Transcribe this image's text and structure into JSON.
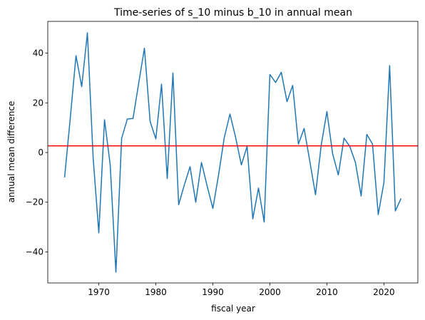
{
  "chart_data": {
    "type": "line",
    "title": "Time-series of s_10 minus b_10 in annual mean",
    "xlabel": "fiscal year",
    "ylabel": "annual mean difference",
    "xlim": [
      1961.05,
      2025.95
    ],
    "ylim": [
      -52.5,
      52.8
    ],
    "xticks": [
      1970,
      1980,
      1990,
      2000,
      2010,
      2020
    ],
    "yticks": [
      -40,
      -20,
      0,
      20,
      40
    ],
    "grid": false,
    "series": [
      {
        "color": "#1f77b4",
        "x": [
          1964,
          1965,
          1966,
          1967,
          1968,
          1969,
          1970,
          1971,
          1972,
          1973,
          1974,
          1975,
          1976,
          1977,
          1978,
          1979,
          1980,
          1981,
          1982,
          1983,
          1984,
          1985,
          1986,
          1987,
          1988,
          1989,
          1990,
          1991,
          1992,
          1993,
          1994,
          1995,
          1996,
          1997,
          1998,
          1999,
          2000,
          2001,
          2002,
          2003,
          2004,
          2005,
          2006,
          2007,
          2008,
          2009,
          2010,
          2011,
          2012,
          2013,
          2014,
          2015,
          2016,
          2017,
          2018,
          2019,
          2020,
          2021,
          2022,
          2023
        ],
        "y": [
          -10,
          14,
          39,
          26.5,
          48.2,
          -2,
          -32.3,
          13.2,
          -5,
          -48.2,
          5.7,
          13.5,
          13.7,
          28,
          42,
          12.5,
          5.5,
          27.5,
          -10.5,
          32,
          -21,
          -13,
          -5.7,
          -20,
          -4,
          -13.5,
          -22.5,
          -9,
          6,
          15.5,
          6,
          -5,
          2.5,
          -26.7,
          -14.3,
          -28,
          31.4,
          28.2,
          32.3,
          20.5,
          27,
          3.4,
          9.7,
          -3.5,
          -17,
          3,
          16.5,
          -0.5,
          -9,
          5.8,
          2.5,
          -4,
          -17.5,
          7.3,
          3.4,
          -25,
          -12,
          35,
          -23.5,
          -18.5
        ]
      }
    ],
    "reference_line": {
      "y": 2.7,
      "color": "#ff0000"
    }
  }
}
